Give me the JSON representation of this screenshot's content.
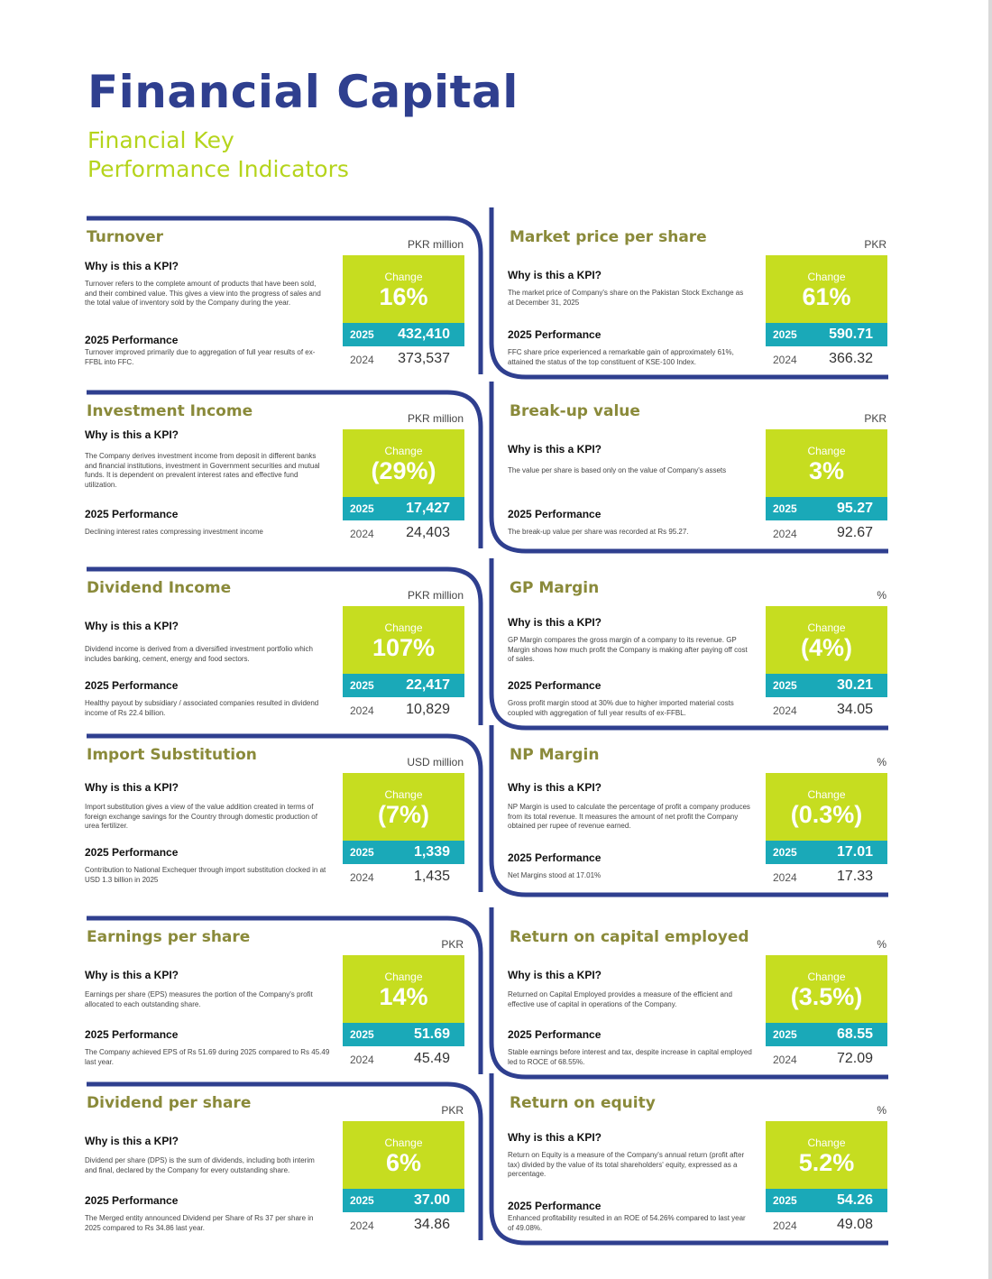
{
  "title": "Financial Capital",
  "subtitle_line1": "Financial Key",
  "subtitle_line2": "Performance Indicators",
  "colors": {
    "navy": "#2f3f8f",
    "lime": "#c6dd20",
    "teal": "#1aa9b8",
    "olive": "#8a8a3a"
  },
  "kpis": [
    {
      "title": "Turnover",
      "unit": "PKR million",
      "question": "Why is this a KPI?",
      "description": "Turnover refers to the complete amount of products that have been sold, and their combined value. This gives a view into the progress of sales and the total value of inventory sold by the Company during the year.",
      "perf_label": "2025 Performance",
      "perf_desc": "Turnover improved primarily due to aggregation of full year results of ex-FFBL into FFC.",
      "change_label": "Change",
      "change": "16%",
      "year_current": "2025",
      "value_current": "432,410",
      "year_prev": "2024",
      "value_prev": "373,537"
    },
    {
      "title": "Market price per share",
      "unit": "PKR",
      "question": "Why is this a KPI?",
      "description": "The market price of Company's share on the Pakistan Stock Exchange as at December 31, 2025",
      "perf_label": "2025 Performance",
      "perf_desc": "FFC share price experienced a remarkable gain of approximately 61%, attained the status of the top constituent of KSE-100 Index.",
      "change_label": "Change",
      "change": "61%",
      "year_current": "2025",
      "value_current": "590.71",
      "year_prev": "2024",
      "value_prev": "366.32"
    },
    {
      "title": "Investment Income",
      "unit": "PKR million",
      "question": "Why is this a KPI?",
      "description": "The Company derives investment income from deposit in different banks and financial institutions, investment in Government securities and mutual funds. It is dependent on prevalent interest rates and effective fund utilization.",
      "perf_label": "2025 Performance",
      "perf_desc": "Declining interest rates compressing investment income",
      "change_label": "Change",
      "change": "(29%)",
      "year_current": "2025",
      "value_current": "17,427",
      "year_prev": "2024",
      "value_prev": "24,403"
    },
    {
      "title": "Break-up value",
      "unit": "PKR",
      "question": "Why is this a KPI?",
      "description": "The value per share is based only on the value of Company's assets",
      "perf_label": "2025 Performance",
      "perf_desc": "The break-up value per share was recorded at Rs 95.27.",
      "change_label": "Change",
      "change": "3%",
      "year_current": "2025",
      "value_current": "95.27",
      "year_prev": "2024",
      "value_prev": "92.67"
    },
    {
      "title": "Dividend Income",
      "unit": "PKR million",
      "question": "Why is this a KPI?",
      "description": "Dividend income is derived from a diversified investment portfolio which includes banking, cement, energy and food sectors.",
      "perf_label": "2025 Performance",
      "perf_desc": "Healthy payout by subsidiary / associated companies resulted in dividend income of Rs 22.4 billion.",
      "change_label": "Change",
      "change": "107%",
      "year_current": "2025",
      "value_current": "22,417",
      "year_prev": "2024",
      "value_prev": "10,829"
    },
    {
      "title": "GP Margin",
      "unit": "%",
      "question": "Why is this a KPI?",
      "description": "GP Margin compares the gross margin of a company to its revenue. GP Margin shows how much profit the Company is making after paying off cost of sales.",
      "perf_label": "2025 Performance",
      "perf_desc": "Gross profit margin stood at 30% due to higher imported material costs coupled with aggregation of full year results of ex-FFBL.",
      "change_label": "Change",
      "change": "(4%)",
      "year_current": "2025",
      "value_current": "30.21",
      "year_prev": "2024",
      "value_prev": "34.05"
    },
    {
      "title": "Import Substitution",
      "unit": "USD million",
      "question": "Why is this a KPI?",
      "description": "Import substitution gives a view of the value addition created in terms of foreign exchange savings for the Country through domestic production of urea fertilizer.",
      "perf_label": "2025 Performance",
      "perf_desc": "Contribution to National Exchequer through import substitution clocked in at USD 1.3 billion in 2025",
      "change_label": "Change",
      "change": "(7%)",
      "year_current": "2025",
      "value_current": "1,339",
      "year_prev": "2024",
      "value_prev": "1,435"
    },
    {
      "title": "NP Margin",
      "unit": "%",
      "question": "Why is this a KPI?",
      "description": "NP Margin is used to calculate the percentage of profit a company produces from its total revenue. It measures the amount of net profit the Company obtained per rupee of revenue earned.",
      "perf_label": "2025 Performance",
      "perf_desc": "Net Margins stood at 17.01%",
      "change_label": "Change",
      "change": "(0.3%)",
      "year_current": "2025",
      "value_current": "17.01",
      "year_prev": "2024",
      "value_prev": "17.33"
    },
    {
      "title": "Earnings per share",
      "unit": "PKR",
      "question": "Why is this a KPI?",
      "description": "Earnings per share (EPS) measures the portion of the Company's profit allocated to each outstanding share.",
      "perf_label": "2025 Performance",
      "perf_desc": "The Company achieved EPS of Rs 51.69 during 2025 compared to Rs 45.49 last year.",
      "change_label": "Change",
      "change": "14%",
      "year_current": "2025",
      "value_current": "51.69",
      "year_prev": "2024",
      "value_prev": "45.49"
    },
    {
      "title": "Return on capital employed",
      "unit": "%",
      "question": "Why is this a KPI?",
      "description": "Returned on Capital Employed provides a measure of the efficient and effective use of capital in operations of the Company.",
      "perf_label": "2025 Performance",
      "perf_desc": "Stable earnings before interest and tax, despite increase in capital employed led to ROCE of 68.55%.",
      "change_label": "Change",
      "change": "(3.5%)",
      "year_current": "2025",
      "value_current": "68.55",
      "year_prev": "2024",
      "value_prev": "72.09"
    },
    {
      "title": "Dividend per share",
      "unit": "PKR",
      "question": "Why is this a KPI?",
      "description": "Dividend per share (DPS) is the sum of dividends, including both interim and final, declared by the Company for every outstanding share.",
      "perf_label": "2025 Performance",
      "perf_desc": "The Merged entity announced Dividend per Share of Rs 37 per share in 2025 compared to Rs 34.86 last year.",
      "change_label": "Change",
      "change": "6%",
      "year_current": "2025",
      "value_current": "37.00",
      "year_prev": "2024",
      "value_prev": "34.86"
    },
    {
      "title": "Return on equity",
      "unit": "%",
      "question": "Why is this a KPI?",
      "description": "Return on Equity is a measure of the Company's annual return (profit after tax) divided by the value of its total shareholders' equity, expressed as a percentage.",
      "perf_label": "2025 Performance",
      "perf_desc": "Enhanced profitability resulted in an ROE of 54.26% compared to last year of 49.08%.",
      "change_label": "Change",
      "change": "5.2%",
      "year_current": "2025",
      "value_current": "54.26",
      "year_prev": "2024",
      "value_prev": "49.08"
    }
  ]
}
